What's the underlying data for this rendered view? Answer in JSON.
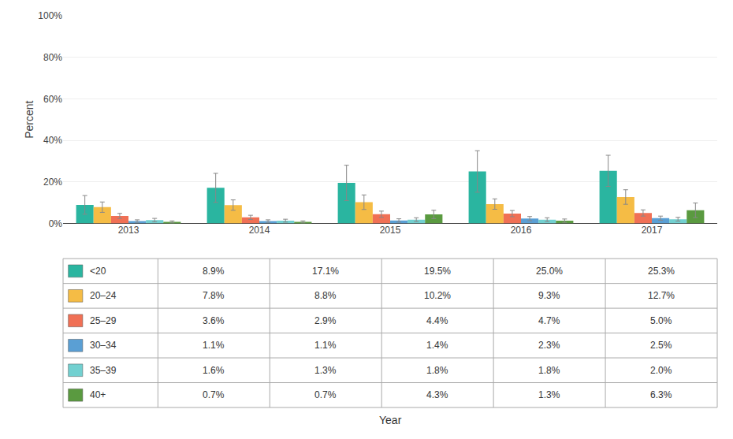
{
  "chart_data": {
    "type": "bar",
    "categories": [
      "2013",
      "2014",
      "2015",
      "2016",
      "2017"
    ],
    "xlabel": "Year",
    "ylabel": "Percent",
    "ylim": [
      0,
      100
    ],
    "yticks": [
      {
        "value": 0,
        "label": "0%"
      },
      {
        "value": 20,
        "label": "20%"
      },
      {
        "value": 40,
        "label": "40%"
      },
      {
        "value": 60,
        "label": "60%"
      },
      {
        "value": 80,
        "label": "80%"
      },
      {
        "value": 100,
        "label": "100%"
      }
    ],
    "grid": true,
    "series": [
      {
        "name": "<20",
        "color": "#2ab5a0",
        "values": [
          8.9,
          17.1,
          19.5,
          25.0,
          25.3
        ],
        "errors": [
          4.5,
          7.0,
          8.5,
          10.0,
          7.5
        ],
        "value_labels": [
          "8.9%",
          "17.1%",
          "19.5%",
          "25.0%",
          "25.3%"
        ]
      },
      {
        "name": "20–24",
        "color": "#f5bc45",
        "values": [
          7.8,
          8.8,
          10.2,
          9.3,
          12.7
        ],
        "errors": [
          2.5,
          2.5,
          3.5,
          2.5,
          3.5
        ],
        "value_labels": [
          "7.8%",
          "8.8%",
          "10.2%",
          "9.3%",
          "12.7%"
        ]
      },
      {
        "name": "25–29",
        "color": "#f07055",
        "values": [
          3.6,
          2.9,
          4.4,
          4.7,
          5.0
        ],
        "errors": [
          1.2,
          1.0,
          1.5,
          1.5,
          1.5
        ],
        "value_labels": [
          "3.6%",
          "2.9%",
          "4.4%",
          "4.7%",
          "5.0%"
        ]
      },
      {
        "name": "30–34",
        "color": "#5a9fd4",
        "values": [
          1.1,
          1.1,
          1.4,
          2.3,
          2.5
        ],
        "errors": [
          0.6,
          0.6,
          0.8,
          1.0,
          1.0
        ],
        "value_labels": [
          "1.1%",
          "1.1%",
          "1.4%",
          "2.3%",
          "2.5%"
        ]
      },
      {
        "name": "35–39",
        "color": "#72d0d0",
        "values": [
          1.6,
          1.3,
          1.8,
          1.8,
          2.0
        ],
        "errors": [
          0.8,
          0.7,
          0.9,
          0.9,
          0.9
        ],
        "value_labels": [
          "1.6%",
          "1.3%",
          "1.8%",
          "1.8%",
          "2.0%"
        ]
      },
      {
        "name": "40+",
        "color": "#5a9a40",
        "values": [
          0.7,
          0.7,
          4.3,
          1.3,
          6.3
        ],
        "errors": [
          0.5,
          0.5,
          2.0,
          0.8,
          3.5
        ],
        "value_labels": [
          "0.7%",
          "0.7%",
          "4.3%",
          "1.3%",
          "6.3%"
        ]
      }
    ]
  }
}
